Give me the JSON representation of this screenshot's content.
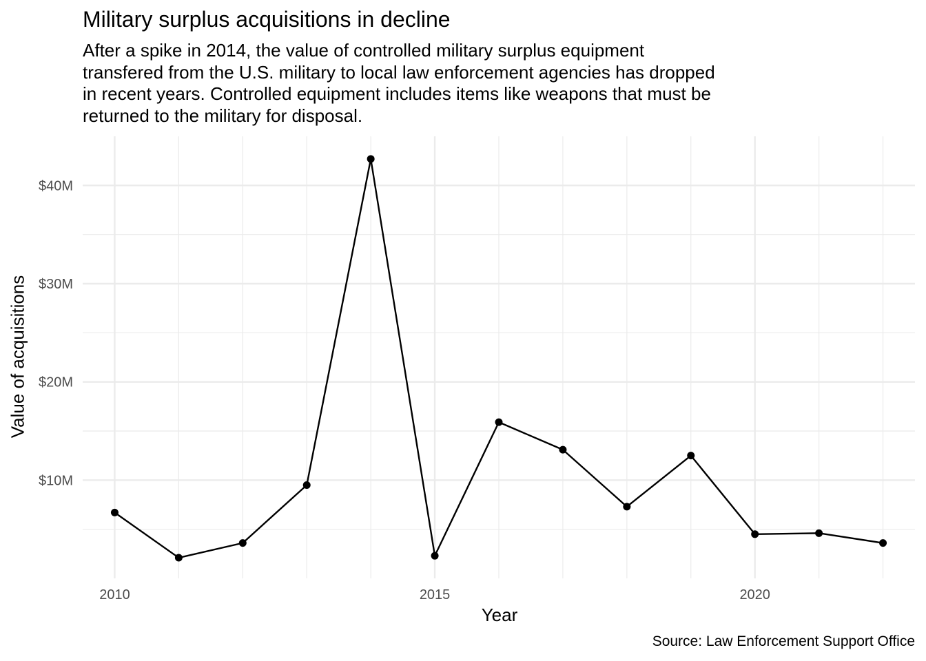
{
  "chart_data": {
    "type": "line",
    "title": "Military surplus acquisitions in decline",
    "subtitle_lines": [
      "After a spike in 2014, the value of controlled military surplus equipment",
      "transfered from the U.S. military to local law enforcement agencies has dropped",
      "in recent years. Controlled equipment includes items like weapons that must be",
      "returned to the military for disposal."
    ],
    "xlabel": "Year",
    "ylabel": "Value of acquisitions",
    "caption": "Source: Law Enforcement Support Office",
    "x": [
      2010,
      2011,
      2012,
      2013,
      2014,
      2015,
      2016,
      2017,
      2018,
      2019,
      2020,
      2021,
      2022
    ],
    "y": [
      6.7,
      2.1,
      3.6,
      9.5,
      42.7,
      2.3,
      15.9,
      13.1,
      7.3,
      12.5,
      4.5,
      4.6,
      3.6
    ],
    "y_units": "millions of dollars",
    "xlim": [
      2009.5,
      2022.5
    ],
    "ylim": [
      0,
      45
    ],
    "x_ticks": [
      2010,
      2015,
      2020
    ],
    "x_tick_labels": [
      "2010",
      "2015",
      "2020"
    ],
    "y_ticks": [
      10,
      20,
      30,
      40
    ],
    "y_tick_labels": [
      "$10M",
      "$20M",
      "$30M",
      "$40M"
    ],
    "grid": true,
    "line_color": "#000000",
    "grid_color": "#ebebeb"
  }
}
